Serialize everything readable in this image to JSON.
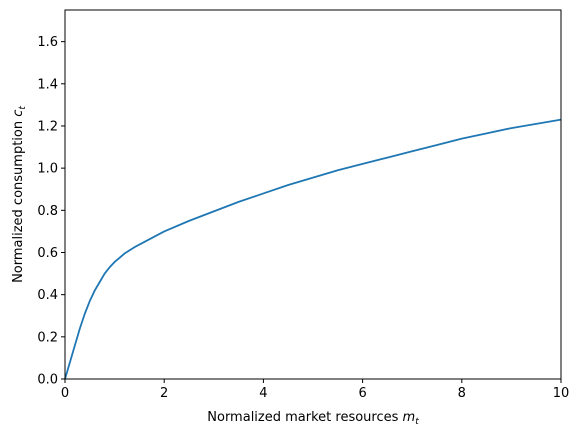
{
  "chart_data": {
    "type": "line",
    "xlabel": "Normalized market resources",
    "xlabel_var": "m",
    "xlabel_sub": "t",
    "ylabel": "Normalized consumption",
    "ylabel_var": "c",
    "ylabel_sub": "t",
    "xlim": [
      0,
      10
    ],
    "ylim": [
      0,
      1.75
    ],
    "xticks": [
      0,
      2,
      4,
      6,
      8,
      10
    ],
    "xtick_labels": [
      "0",
      "2",
      "4",
      "6",
      "8",
      "10"
    ],
    "yticks": [
      0,
      0.2,
      0.4,
      0.6,
      0.8,
      1.0,
      1.2,
      1.4,
      1.6
    ],
    "ytick_labels": [
      "0.0",
      "0.2",
      "0.4",
      "0.6",
      "0.8",
      "1.0",
      "1.2",
      "1.4",
      "1.6"
    ],
    "grid": false,
    "legend": "none",
    "series": [
      {
        "color": "#1f77b4",
        "x": [
          0,
          0.1,
          0.2,
          0.3,
          0.4,
          0.5,
          0.6,
          0.7,
          0.8,
          0.9,
          1.0,
          1.1,
          1.2,
          1.4,
          1.6,
          1.8,
          2.0,
          2.5,
          3.0,
          3.5,
          4.0,
          4.5,
          5.0,
          5.5,
          6.0,
          6.5,
          7.0,
          7.5,
          8.0,
          8.5,
          9.0,
          9.5,
          10.0
        ],
        "y": [
          0,
          0.08,
          0.16,
          0.24,
          0.31,
          0.37,
          0.42,
          0.46,
          0.5,
          0.53,
          0.555,
          0.575,
          0.595,
          0.625,
          0.65,
          0.675,
          0.7,
          0.75,
          0.795,
          0.84,
          0.88,
          0.92,
          0.955,
          0.99,
          1.02,
          1.05,
          1.08,
          1.11,
          1.14,
          1.165,
          1.19,
          1.21,
          1.23
        ]
      }
    ]
  }
}
